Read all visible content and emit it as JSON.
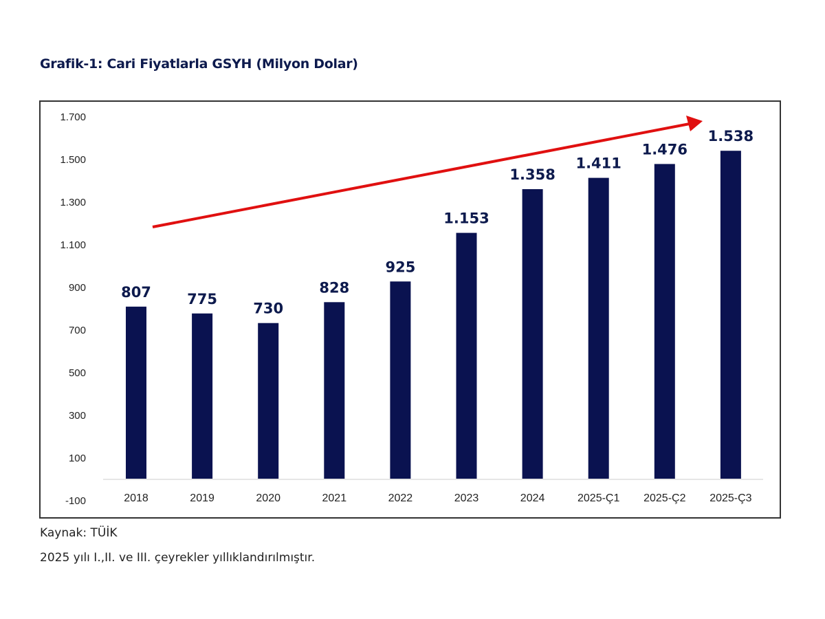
{
  "chart_data": {
    "type": "bar",
    "title": "Grafik-1: Cari Fiyatlarla GSYH (Milyon Dolar)",
    "categories": [
      "2018",
      "2019",
      "2020",
      "2021",
      "2022",
      "2023",
      "2024",
      "2025-Ç1",
      "2025-Ç2",
      "2025-Ç3"
    ],
    "values": [
      807,
      775,
      730,
      828,
      925,
      1153,
      1358,
      1411,
      1476,
      1538
    ],
    "data_labels": [
      "807",
      "775",
      "730",
      "828",
      "925",
      "1.153",
      "1.358",
      "1.411",
      "1.476",
      "1.538"
    ],
    "yticks": [
      -100,
      100,
      300,
      500,
      700,
      900,
      1100,
      1300,
      1500,
      1700
    ],
    "ytick_labels": [
      "-100",
      "100",
      "300",
      "500",
      "700",
      "900",
      "1.100",
      "1.300",
      "1.500",
      "1.700"
    ],
    "ylim": [
      -100,
      1700
    ],
    "xlabel": "",
    "ylabel": "",
    "grid": false,
    "annotation": "red upward trend arrow",
    "colors": {
      "bar": "#0a1250",
      "arrow": "#e01010",
      "title": "#0d1a4d"
    }
  },
  "footnotes": {
    "source": "Kaynak: TÜİK",
    "note": "2025 yılı I.,II. ve III. çeyrekler yıllıklandırılmıştır."
  }
}
